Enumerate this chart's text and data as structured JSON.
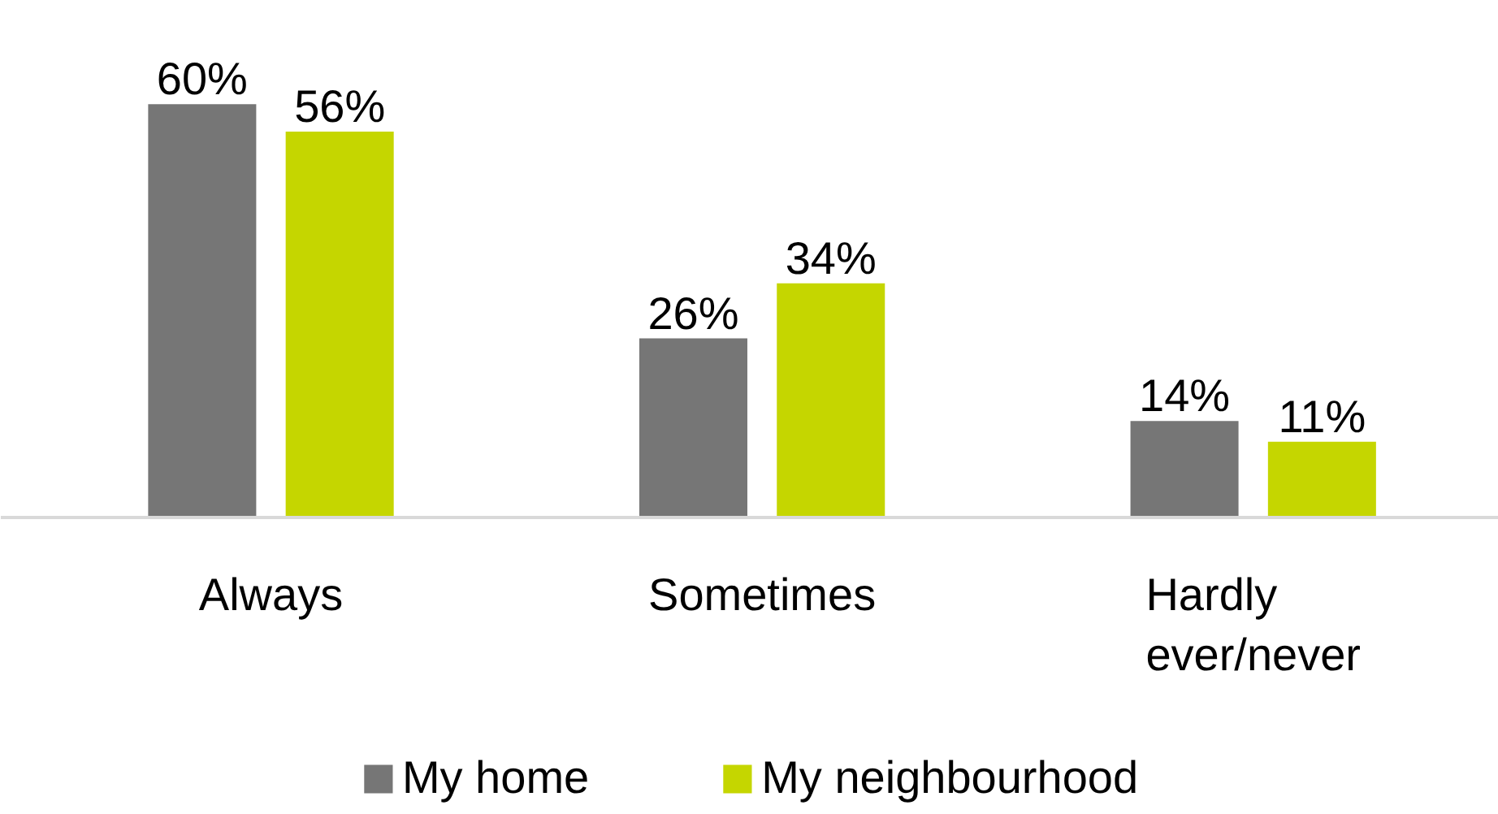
{
  "chart_data": {
    "type": "bar",
    "categories": [
      "Always",
      "Sometimes",
      "Hardly\never/never"
    ],
    "series": [
      {
        "name": "My home",
        "color": "#767676",
        "values": [
          60,
          26,
          14
        ],
        "value_labels": [
          "60%",
          "26%",
          "14%"
        ]
      },
      {
        "name": "My neighbourhood",
        "color": "#c5d600",
        "values": [
          56,
          34,
          11
        ],
        "value_labels": [
          "56%",
          "34%",
          "11%"
        ]
      }
    ],
    "legend": "bottom"
  }
}
